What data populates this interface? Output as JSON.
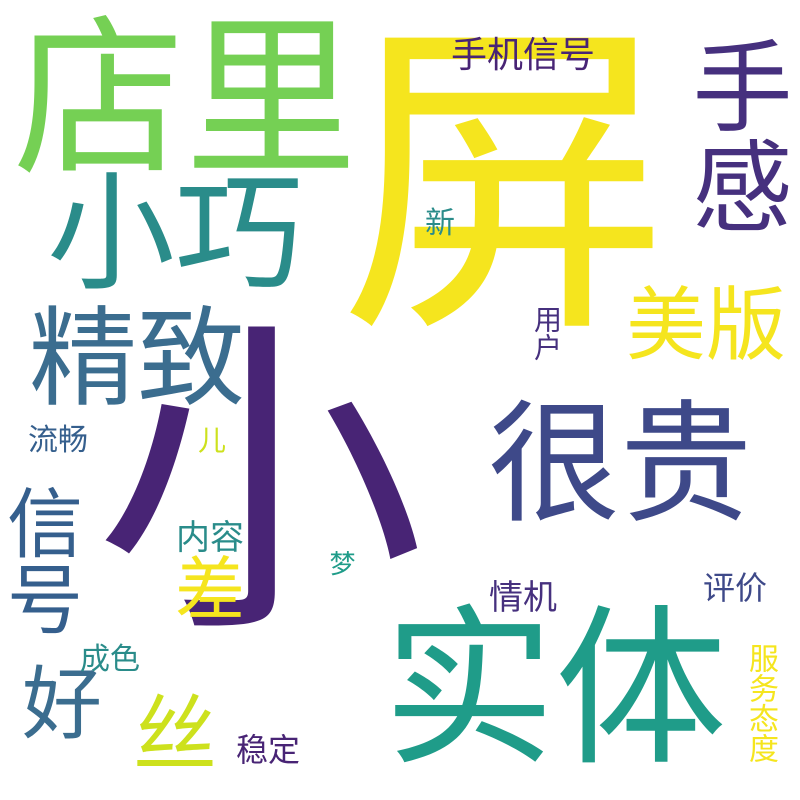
{
  "words": [
    {
      "key": "ping",
      "text": "屏"
    },
    {
      "key": "xiao",
      "text": "小"
    },
    {
      "key": "shiti",
      "text": "实体"
    },
    {
      "key": "dianli",
      "text": "店里"
    },
    {
      "key": "hengui",
      "text": "很贵"
    },
    {
      "key": "xiaoqiao",
      "text": "小巧"
    },
    {
      "key": "jingzhi",
      "text": "精致"
    },
    {
      "key": "shougan",
      "text": "手感"
    },
    {
      "key": "xinhao",
      "text": "信号"
    },
    {
      "key": "meiban",
      "text": "美版"
    },
    {
      "key": "hao",
      "text": "好"
    },
    {
      "key": "si",
      "text": "丝"
    },
    {
      "key": "cha",
      "text": "差"
    },
    {
      "key": "shoujixinhao",
      "text": "手机信号"
    },
    {
      "key": "neirong",
      "text": "内容"
    },
    {
      "key": "qingji",
      "text": "情机"
    },
    {
      "key": "pingjia",
      "text": "评价"
    },
    {
      "key": "fuwutaidu",
      "text": "服务态度"
    },
    {
      "key": "liuchang",
      "text": "流畅"
    },
    {
      "key": "chengse",
      "text": "成色"
    },
    {
      "key": "wending",
      "text": "稳定"
    },
    {
      "key": "yonghu",
      "text": "用户"
    },
    {
      "key": "xin",
      "text": "新"
    },
    {
      "key": "er",
      "text": "儿"
    },
    {
      "key": "meng",
      "text": "梦"
    }
  ],
  "palette": [
    "#f5e51e",
    "#cde11d",
    "#75d054",
    "#1f9c89",
    "#2a8c8a",
    "#3b6d8f",
    "#355f8d",
    "#3e4989",
    "#46307e",
    "#482475"
  ]
}
